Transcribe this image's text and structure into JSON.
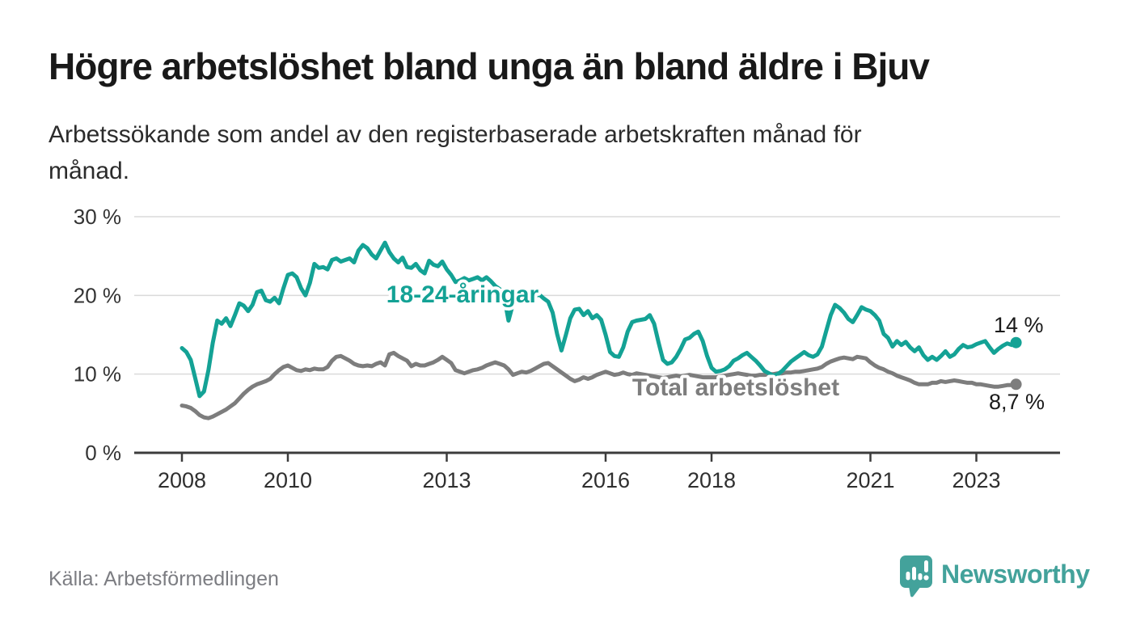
{
  "header": {
    "title": "Högre arbetslöshet bland unga än bland äldre i Bjuv",
    "subtitle": "Arbetssökande som andel av den registerbaserade arbetskraften månad för\nmånad."
  },
  "source": {
    "label": "Källa: Arbetsförmedlingen"
  },
  "brand": {
    "name": "Newsworthy",
    "icon": "newsworthy-speech-bubble-bar-chart",
    "color": "#43a29b"
  },
  "colors": {
    "youth_line": "#14A295",
    "total_line": "#7D7D7D",
    "grid": "#DADADA",
    "axis": "#3C3C3C",
    "text": "#191919",
    "muted_text": "#7C7D82",
    "brand": "#43A29B",
    "background": "#FFFFFF"
  },
  "chart_data": {
    "type": "line",
    "title": "Högre arbetslöshet bland unga än bland äldre i Bjuv",
    "xlabel": "",
    "ylabel": "",
    "unit": "%",
    "grid": true,
    "legend": "inline-line-labels",
    "ylim": [
      0,
      30
    ],
    "x": {
      "start": "2008-01",
      "end": "2023-10",
      "frequency": "monthly",
      "points": 190
    },
    "x_ticks": [
      {
        "value": 2008,
        "label": "2008"
      },
      {
        "value": 2010,
        "label": "2010"
      },
      {
        "value": 2013,
        "label": "2013"
      },
      {
        "value": 2016,
        "label": "2016"
      },
      {
        "value": 2018,
        "label": "2018"
      },
      {
        "value": 2021,
        "label": "2021"
      },
      {
        "value": 2023,
        "label": "2023"
      }
    ],
    "y_ticks": [
      {
        "value": 0,
        "label": "0 %"
      },
      {
        "value": 10,
        "label": "10 %"
      },
      {
        "value": 20,
        "label": "20 %"
      },
      {
        "value": 30,
        "label": "30 %"
      }
    ],
    "series": [
      {
        "name": "18-24-åringar",
        "color": "#14A295",
        "end_label": "14 %",
        "end_value": 14.0,
        "values": [
          13.3,
          12.8,
          11.8,
          9.5,
          7.2,
          7.8,
          10.5,
          14.0,
          16.8,
          16.4,
          17.1,
          16.1,
          17.5,
          19.0,
          18.7,
          18.0,
          18.8,
          20.4,
          20.6,
          19.4,
          19.2,
          19.7,
          19.0,
          20.9,
          22.6,
          22.8,
          22.3,
          20.9,
          20.0,
          21.6,
          24.0,
          23.5,
          23.6,
          23.3,
          24.5,
          24.7,
          24.3,
          24.5,
          24.7,
          24.2,
          25.7,
          26.4,
          26.0,
          25.2,
          24.7,
          25.7,
          26.7,
          25.5,
          24.7,
          24.2,
          24.8,
          23.6,
          23.5,
          24.0,
          23.2,
          22.8,
          24.4,
          23.9,
          23.7,
          24.3,
          23.3,
          22.6,
          21.7,
          21.9,
          22.2,
          21.9,
          22.1,
          22.3,
          21.9,
          22.3,
          21.8,
          21.2,
          20.8,
          19.8,
          16.8,
          18.9,
          19.9,
          19.6,
          19.4,
          19.8,
          19.9,
          20.1,
          19.6,
          19.2,
          17.8,
          15.1,
          13.0,
          15.0,
          17.1,
          18.2,
          18.3,
          17.5,
          18.0,
          17.1,
          17.5,
          16.9,
          15.0,
          12.8,
          12.3,
          12.2,
          13.4,
          15.4,
          16.6,
          16.8,
          16.9,
          17.0,
          17.5,
          16.4,
          14.0,
          11.8,
          11.3,
          11.5,
          12.2,
          13.2,
          14.4,
          14.6,
          15.1,
          15.4,
          14.2,
          12.3,
          10.8,
          10.3,
          10.4,
          10.6,
          11.0,
          11.7,
          12.0,
          12.4,
          12.7,
          12.2,
          11.7,
          11.1,
          10.4,
          10.1,
          9.8,
          10.0,
          10.4,
          11.0,
          11.6,
          12.0,
          12.4,
          12.8,
          12.4,
          12.2,
          12.5,
          13.5,
          15.5,
          17.5,
          18.8,
          18.4,
          17.8,
          17.0,
          16.6,
          17.5,
          18.5,
          18.2,
          18.0,
          17.5,
          16.8,
          15.1,
          14.6,
          13.5,
          14.2,
          13.7,
          14.1,
          13.4,
          12.9,
          13.4,
          12.4,
          11.8,
          12.2,
          11.8,
          12.3,
          12.9,
          12.2,
          12.5,
          13.2,
          13.7,
          13.4,
          13.5,
          13.8,
          14.0,
          14.2,
          13.4,
          12.7,
          13.2,
          13.6,
          13.9,
          13.7,
          14.0
        ]
      },
      {
        "name": "Total arbetslöshet",
        "color": "#7D7D7D",
        "end_label": "8,7 %",
        "end_value": 8.7,
        "values": [
          6.0,
          5.9,
          5.7,
          5.3,
          4.8,
          4.5,
          4.4,
          4.6,
          4.9,
          5.2,
          5.5,
          5.9,
          6.3,
          6.9,
          7.5,
          8.0,
          8.4,
          8.7,
          8.9,
          9.1,
          9.4,
          10.0,
          10.5,
          10.9,
          11.1,
          10.8,
          10.5,
          10.4,
          10.6,
          10.5,
          10.7,
          10.6,
          10.6,
          10.9,
          11.7,
          12.2,
          12.3,
          12.0,
          11.7,
          11.3,
          11.1,
          11.0,
          11.1,
          11.0,
          11.3,
          11.5,
          11.1,
          12.5,
          12.7,
          12.3,
          12.0,
          11.7,
          11.0,
          11.3,
          11.1,
          11.1,
          11.3,
          11.5,
          11.8,
          12.2,
          11.8,
          11.4,
          10.5,
          10.3,
          10.1,
          10.3,
          10.5,
          10.6,
          10.8,
          11.1,
          11.3,
          11.5,
          11.3,
          11.1,
          10.6,
          9.9,
          10.1,
          10.3,
          10.2,
          10.4,
          10.7,
          11.0,
          11.3,
          11.4,
          11.0,
          10.6,
          10.2,
          9.8,
          9.4,
          9.1,
          9.3,
          9.6,
          9.4,
          9.6,
          9.9,
          10.1,
          10.3,
          10.1,
          9.9,
          10.0,
          10.2,
          10.0,
          9.9,
          10.1,
          10.0,
          9.9,
          9.8,
          9.7,
          9.6,
          9.5,
          9.6,
          9.7,
          9.8,
          9.7,
          9.8,
          9.9,
          9.8,
          9.7,
          9.6,
          9.6,
          9.6,
          9.6,
          9.7,
          9.8,
          9.9,
          10.0,
          10.1,
          10.0,
          9.9,
          9.8,
          9.8,
          9.9,
          9.9,
          10.0,
          10.0,
          10.1,
          10.1,
          10.2,
          10.2,
          10.3,
          10.3,
          10.4,
          10.5,
          10.6,
          10.7,
          10.9,
          11.3,
          11.6,
          11.8,
          12.0,
          12.1,
          12.0,
          11.9,
          12.2,
          12.1,
          12.0,
          11.5,
          11.1,
          10.8,
          10.6,
          10.3,
          10.1,
          9.8,
          9.6,
          9.4,
          9.2,
          8.9,
          8.7,
          8.7,
          8.7,
          8.9,
          8.9,
          9.1,
          9.0,
          9.1,
          9.2,
          9.1,
          9.0,
          8.9,
          8.9,
          8.7,
          8.7,
          8.6,
          8.5,
          8.4,
          8.4,
          8.5,
          8.6,
          8.6,
          8.7
        ]
      }
    ]
  }
}
